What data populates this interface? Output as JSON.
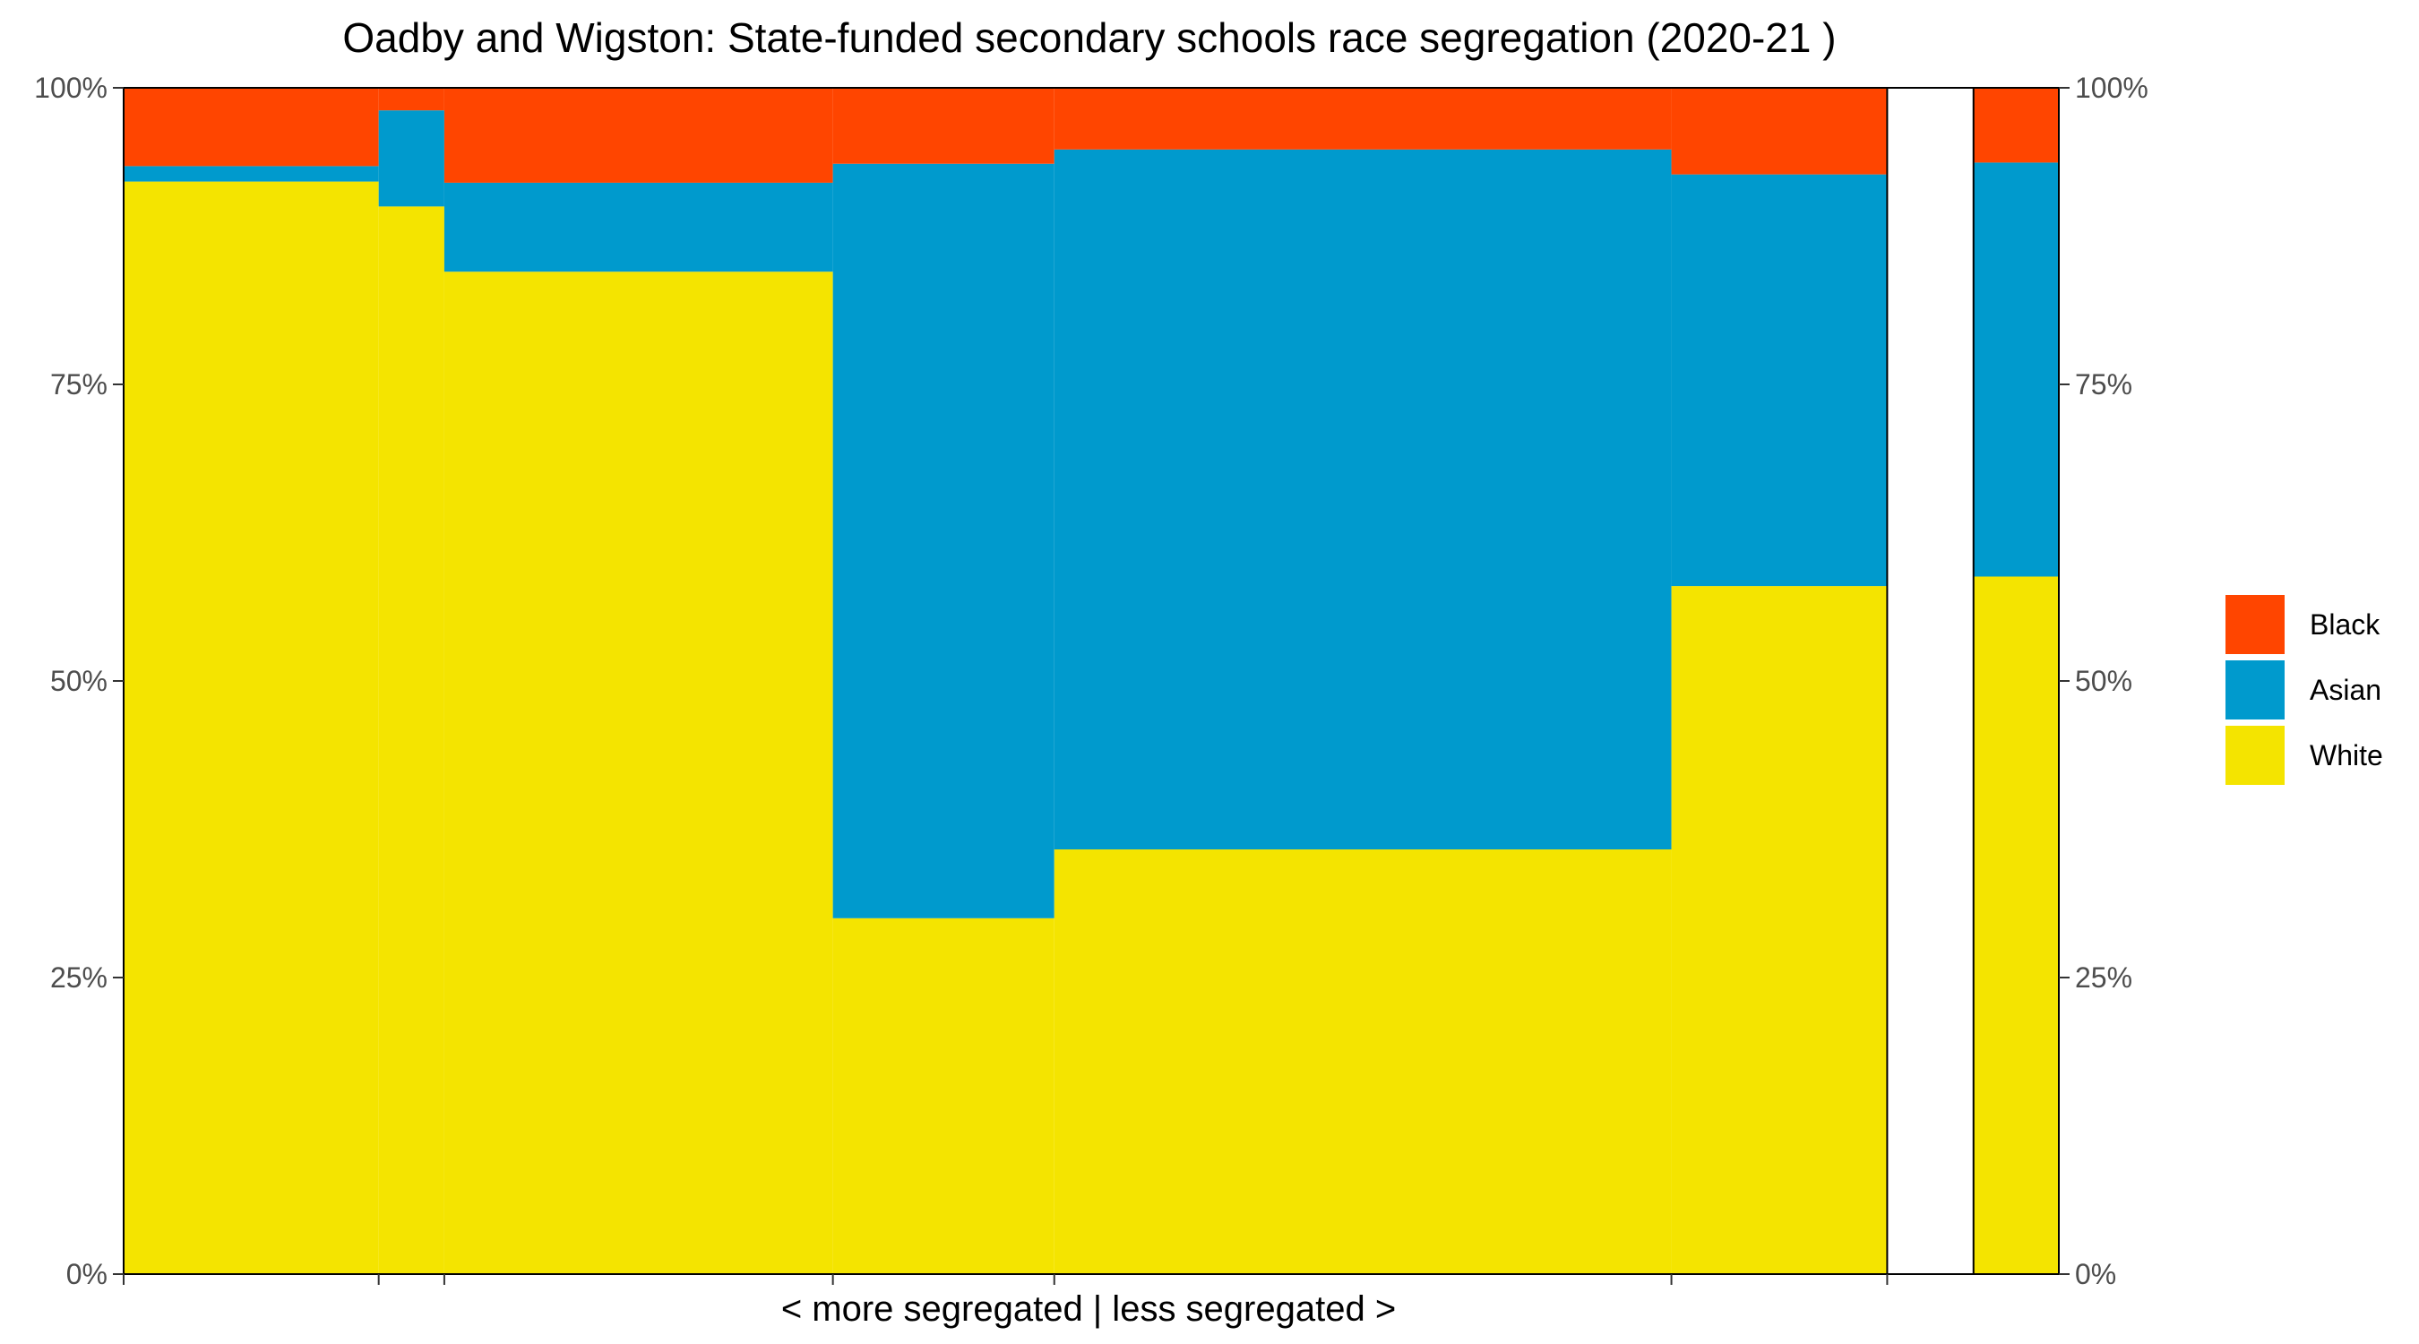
{
  "chart_data": {
    "type": "bar",
    "subtype": "stacked-proportional-variable-width",
    "title": "Oadby and Wigston: State-funded secondary schools race segregation (2020-21 )",
    "xlabel": "< more segregated | less segregated >",
    "ylabel": "",
    "ylim": [
      0,
      100
    ],
    "y_ticks": [
      "0%",
      "25%",
      "50%",
      "75%",
      "100%"
    ],
    "secondary_y_axis": true,
    "grid": false,
    "legend_position": "right",
    "x_range": [
      0,
      1
    ],
    "series": [
      {
        "name": "Black",
        "color": "#FF4500"
      },
      {
        "name": "Asian",
        "color": "#009ACD"
      },
      {
        "name": "White",
        "color": "#F4E400"
      }
    ],
    "bars": [
      {
        "x_start": 0.0,
        "x_end": 0.1318,
        "values": {
          "White": 92.1,
          "Asian": 1.3,
          "Black": 6.6
        }
      },
      {
        "x_start": 0.1318,
        "x_end": 0.1657,
        "values": {
          "White": 90.0,
          "Asian": 8.1,
          "Black": 1.9
        }
      },
      {
        "x_start": 0.1657,
        "x_end": 0.3665,
        "values": {
          "White": 84.5,
          "Asian": 7.5,
          "Black": 8.0
        }
      },
      {
        "x_start": 0.3665,
        "x_end": 0.4809,
        "values": {
          "White": 30.0,
          "Asian": 63.6,
          "Black": 6.4
        }
      },
      {
        "x_start": 0.4809,
        "x_end": 0.7998,
        "values": {
          "White": 35.8,
          "Asian": 59.0,
          "Black": 5.2
        }
      },
      {
        "x_start": 0.7998,
        "x_end": 0.9113,
        "values": {
          "White": 58.0,
          "Asian": 34.7,
          "Black": 7.3
        }
      }
    ],
    "gap": {
      "x_start": 0.9113,
      "x_end": 0.9559
    },
    "total_bar": {
      "x_start": 0.9559,
      "x_end": 1.0,
      "values": {
        "White": 58.8,
        "Asian": 34.9,
        "Black": 6.3
      }
    }
  }
}
